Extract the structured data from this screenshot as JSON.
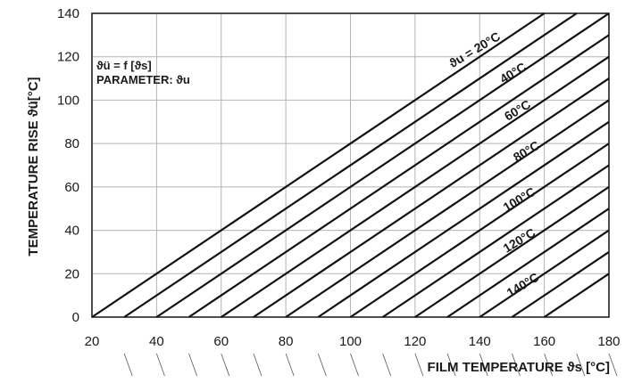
{
  "chart_data": {
    "type": "line",
    "xlabel": "FILM TEMPERATURE ϑs [°C]",
    "ylabel": "TEMPERATURE RISE ϑü[°C]",
    "annotation_lines": [
      "ϑü = f [ϑs]",
      "PARAMETER: ϑu"
    ],
    "xlim": [
      20,
      180
    ],
    "ylim": [
      0,
      140
    ],
    "x_ticks": [
      20,
      40,
      60,
      80,
      100,
      120,
      140,
      160,
      180
    ],
    "y_ticks": [
      0,
      20,
      40,
      60,
      80,
      100,
      120,
      140
    ],
    "grid": true,
    "parameter_labels": [
      {
        "param": 20,
        "text": "ϑu = 20°C"
      },
      {
        "param": 40,
        "text": "40°C"
      },
      {
        "param": 60,
        "text": "60°C"
      },
      {
        "param": 80,
        "text": "80°C"
      },
      {
        "param": 100,
        "text": "100°C"
      },
      {
        "param": 120,
        "text": "120°C"
      },
      {
        "param": 140,
        "text": "140°C"
      }
    ],
    "series": [
      {
        "start_x": 20,
        "slope": 1.0
      },
      {
        "start_x": 30,
        "slope": 1.0
      },
      {
        "start_x": 40,
        "slope": 1.0
      },
      {
        "start_x": 50,
        "slope": 1.0
      },
      {
        "start_x": 60,
        "slope": 1.0
      },
      {
        "start_x": 70,
        "slope": 1.0
      },
      {
        "start_x": 80,
        "slope": 1.0
      },
      {
        "start_x": 90,
        "slope": 1.0
      },
      {
        "start_x": 100,
        "slope": 1.0
      },
      {
        "start_x": 110,
        "slope": 1.0
      },
      {
        "start_x": 120,
        "slope": 1.0
      },
      {
        "start_x": 130,
        "slope": 1.0
      },
      {
        "start_x": 140,
        "slope": 1.0
      },
      {
        "start_x": 150,
        "slope": 1.0
      },
      {
        "start_x": 160,
        "slope": 1.0
      }
    ]
  }
}
